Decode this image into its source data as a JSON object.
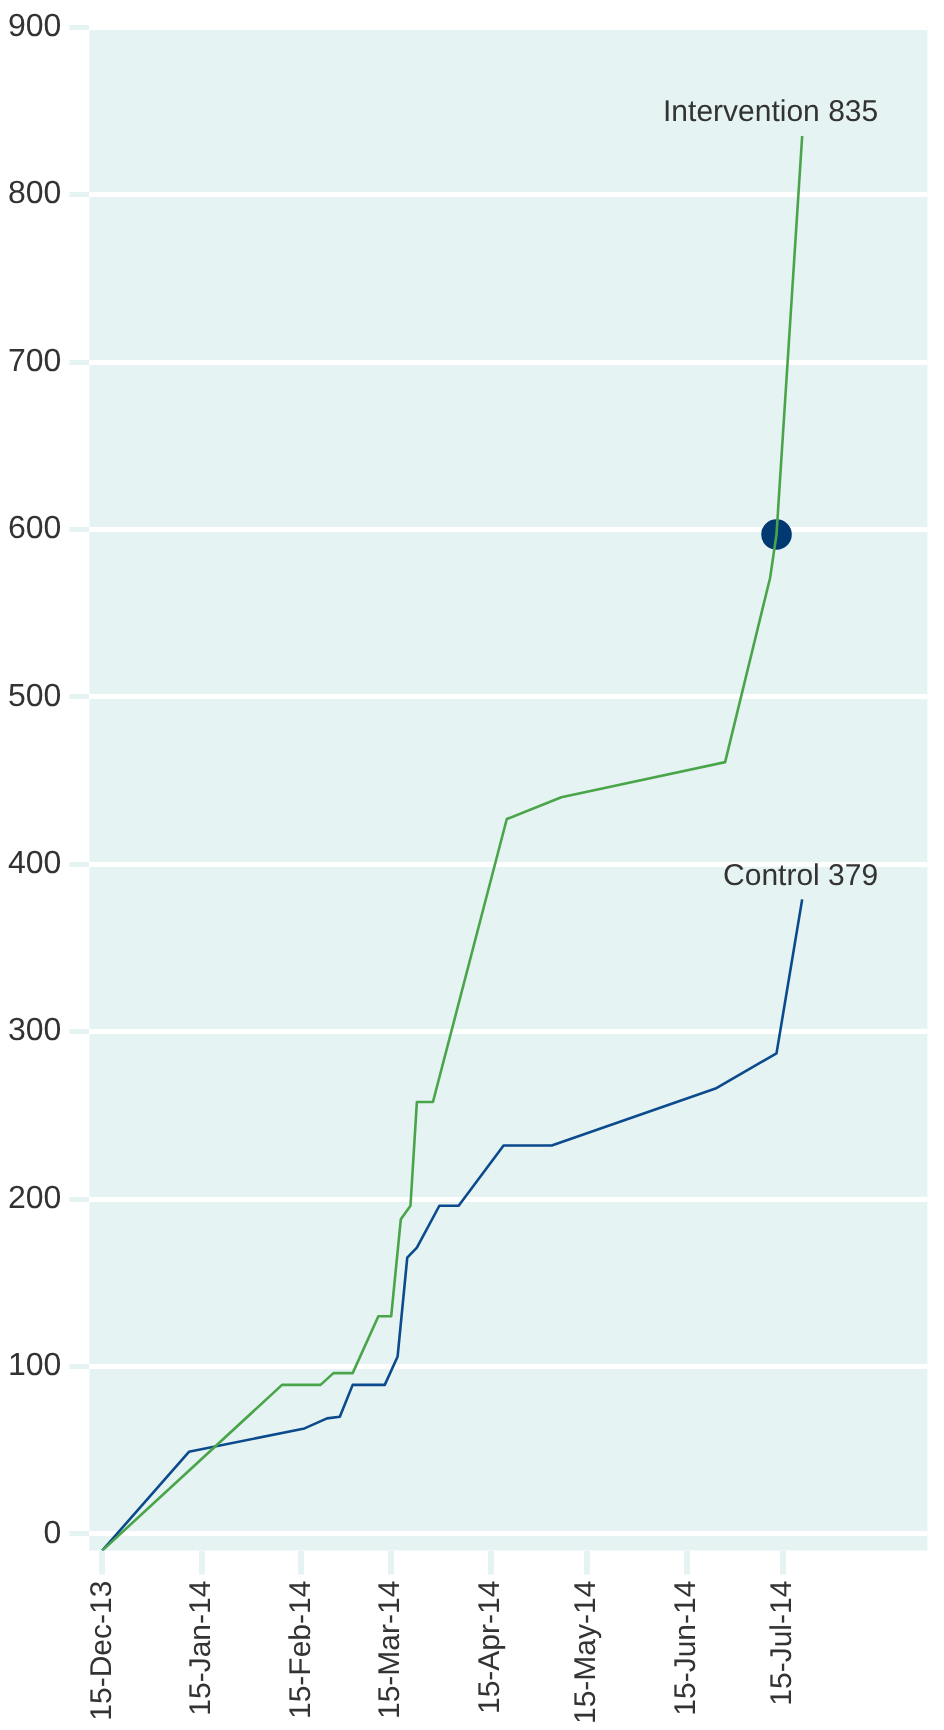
{
  "chart_data": {
    "type": "line",
    "grid": "y",
    "legend": false,
    "xlim": [
      "2013-12-11",
      "2014-08-29"
    ],
    "ylim": [
      -10,
      900
    ],
    "xticks": [
      {
        "value": "2013-12-15",
        "label": "15-Dec-13"
      },
      {
        "value": "2014-01-15",
        "label": "15-Jan-14"
      },
      {
        "value": "2014-02-15",
        "label": "15-Feb-14"
      },
      {
        "value": "2014-03-15",
        "label": "15-Mar-14"
      },
      {
        "value": "2014-04-15",
        "label": "15-Apr-14"
      },
      {
        "value": "2014-05-15",
        "label": "15-May-14"
      },
      {
        "value": "2014-06-15",
        "label": "15-Jun-14"
      },
      {
        "value": "2014-07-15",
        "label": "15-Jul-14"
      }
    ],
    "yticks": [
      0,
      100,
      200,
      300,
      400,
      500,
      600,
      700,
      800,
      900
    ],
    "series": [
      {
        "color": "#4aa54a",
        "marker": "none",
        "x": [
          "2013-12-15",
          "2014-02-09",
          "2014-02-21",
          "2014-02-25",
          "2014-03-03",
          "2014-03-11",
          "2014-03-15",
          "2014-03-18",
          "2014-03-21",
          "2014-03-23",
          "2014-03-28",
          "2014-04-20",
          "2014-05-07",
          "2014-06-27",
          "2014-07-11",
          "2014-07-13",
          "2014-07-21"
        ],
        "values": [
          -10,
          89,
          89,
          96,
          96,
          130,
          130,
          188,
          196,
          258,
          258,
          427,
          440,
          461,
          571,
          597,
          835
        ]
      },
      {
        "color": "#0b4a8c",
        "marker": "none",
        "x": [
          "2013-12-15",
          "2014-01-11",
          "2014-02-16",
          "2014-02-23",
          "2014-02-27",
          "2014-03-03",
          "2014-03-13",
          "2014-03-17",
          "2014-03-20",
          "2014-03-23",
          "2014-03-30",
          "2014-04-05",
          "2014-04-19",
          "2014-05-04",
          "2014-06-24",
          "2014-07-13",
          "2014-07-21"
        ],
        "values": [
          -10,
          49,
          63,
          69,
          70,
          89,
          89,
          106,
          165,
          171,
          196,
          196,
          232,
          232,
          266,
          287,
          379
        ]
      },
      {
        "type": "scatter",
        "color": "#003a70",
        "marker": "circle",
        "x": [
          "2014-07-13"
        ],
        "values": [
          597
        ]
      }
    ],
    "annotations": [
      {
        "text": "Intervention 835",
        "x": "2014-07-21",
        "y": 835
      },
      {
        "text": "Control 379",
        "x": "2014-07-21",
        "y": 379
      }
    ]
  }
}
